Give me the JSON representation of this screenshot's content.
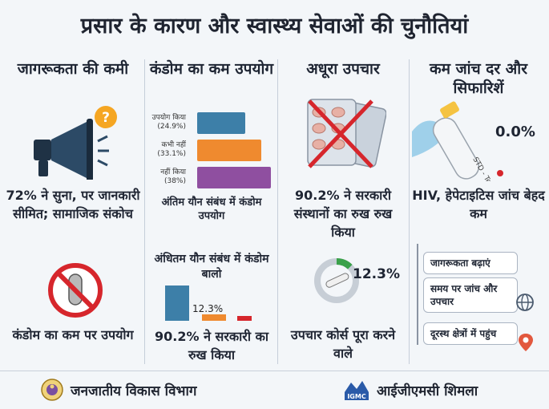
{
  "title": "प्रसार के कारण और स्वास्थ्य सेवाओं की चुनौतियां",
  "col1": {
    "heading": "जागरूकता की कमी",
    "stat": "72% ने सुना, पर जानकारी सीमित; सामाजिक संकोच",
    "bottom": "कंडोम का कम पर उपयोग"
  },
  "col2": {
    "heading": "कंडोम का कम उपयोग",
    "bars": [
      {
        "label": "उपयोग किया (24.9%)",
        "value": 24.9,
        "color": "#3d7fa8"
      },
      {
        "label": "कभी नहीं (33.1%)",
        "value": 33.1,
        "color": "#ef8a2f"
      },
      {
        "label": "नहीं किया (38%)",
        "value": 38,
        "color": "#8f4fa0"
      }
    ],
    "caption": "अंतिम यौन संबंध में कंडोम उपयोग",
    "heading2": "अंधितम यौन संबंध में कंडोम बालो",
    "mini_label": "12.3%",
    "bottom": "90.2% ने सरकारी का रुख किया"
  },
  "col3": {
    "heading": "अधूरा उपचार",
    "stat": "90.2% ने सरकारी संस्थानों का रुख रुख किया",
    "gauge_value": "12.3%",
    "gauge_fraction": 0.123,
    "bottom": "उपचार कोर्स पूरा करने वाले"
  },
  "col4": {
    "heading": "कम जांच दर और सिफारिशें",
    "tube_label": "STD - Test",
    "test_value": "0.0%",
    "stat": "HIV, हेपेटाइटिस जांच बेहद कम",
    "recs": [
      "जागरूकता बढ़ाएं",
      "समय पर जांच और उपचार",
      "दूरस्थ क्षेत्रों में पहुंच"
    ]
  },
  "footer": {
    "left": "जनजातीय विकास विभाग",
    "right": "आईजीएमसी शिमला",
    "logo_text": "IGMC"
  }
}
